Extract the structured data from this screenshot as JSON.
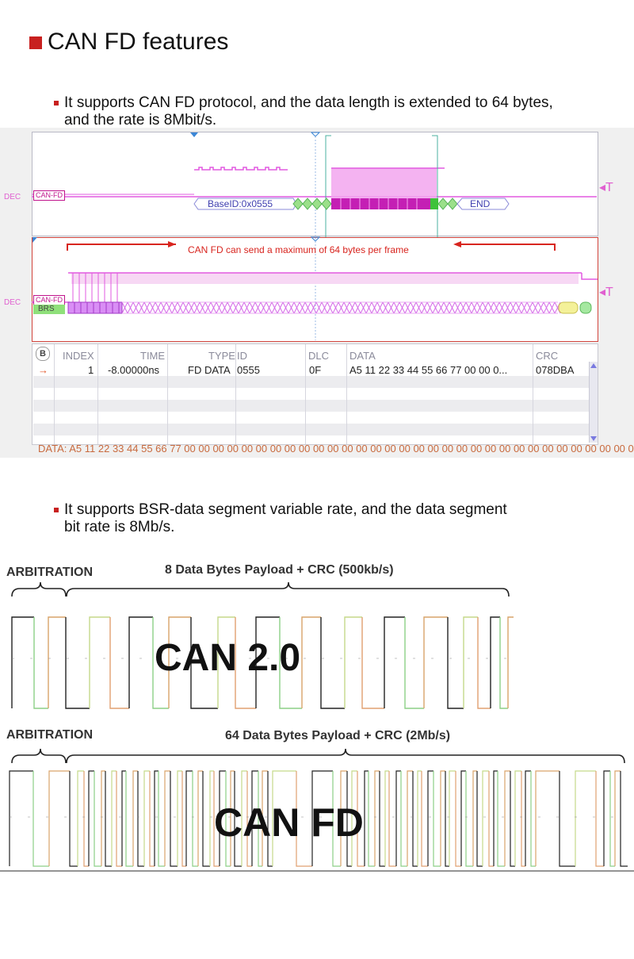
{
  "header": {
    "title": "CAN FD features"
  },
  "bullets": [
    {
      "line1": "It supports CAN FD protocol, and the data length is extended to 64 bytes,",
      "line2": "and the rate is 8Mbit/s."
    },
    {
      "line1": "It supports BSR-data segment variable rate, and the data segment",
      "line2": "bit rate is 8Mb/s."
    }
  ],
  "scope": {
    "dec_label": "DEC",
    "trigger_label": "◂T",
    "decoder_tag": "CAN-FD",
    "base_id": "BaseID:0x0555",
    "end_label": "END",
    "brs_label": "BRS",
    "annotation": "CAN FD can send a maximum of 64 bytes per frame",
    "colors": {
      "signal": "#e25ae0",
      "annotation": "#d8251f",
      "green": "#6fd05a",
      "brs_bg": "#8fe07a"
    },
    "table": {
      "bus_icon": "B",
      "headers": [
        "INDEX",
        "TIME",
        "TYPE",
        "ID",
        "DLC",
        "DATA",
        "CRC"
      ],
      "row": {
        "arrow": "→",
        "index": "1",
        "time": "-8.00000ns",
        "type": "FD DATA",
        "id": "0555",
        "dlc": "0F",
        "data": "A5 11 22 33 44 55 66 77 00 00 0...",
        "crc": "078DBA"
      }
    },
    "data_line": "DATA: A5 11 22 33 44 55 66 77 00 00 00 00 00 00 00 00 00 00 00 00 00 00 00 00 00 00 00 00 00 00 00 00 00 00 00 00 00 00 00 00..."
  },
  "diagram": {
    "can20": {
      "arbitration": "ARBITRATION",
      "payload": "8 Data Bytes Payload + CRC (500kb/s)",
      "name": "CAN 2.0"
    },
    "canfd": {
      "arbitration": "ARBITRATION",
      "payload": "64 Data Bytes Payload + CRC (2Mb/s)",
      "name": "CAN FD"
    }
  }
}
